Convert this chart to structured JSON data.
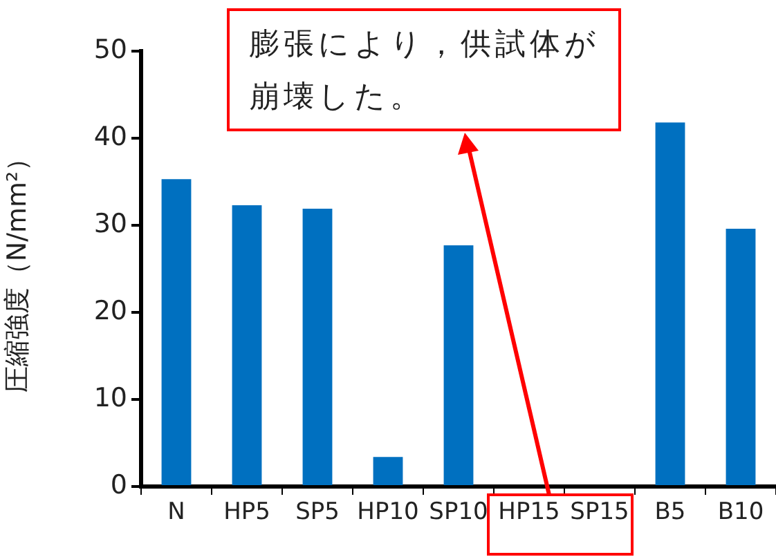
{
  "chart_data": {
    "type": "bar",
    "categories": [
      "N",
      "HP5",
      "SP5",
      "HP10",
      "SP10",
      "HP15",
      "SP15",
      "B5",
      "B10"
    ],
    "values": [
      35.3,
      32.3,
      31.9,
      3.4,
      27.7,
      null,
      null,
      41.8,
      29.6
    ],
    "color": "#0070c0",
    "ylabel": "圧縮強度（N/mm²）",
    "ylim": [
      0,
      50
    ],
    "yticks": [
      0,
      10,
      20,
      30,
      40,
      50
    ],
    "annotations": [
      "膨張により，供試体が崩壊した。"
    ]
  }
}
